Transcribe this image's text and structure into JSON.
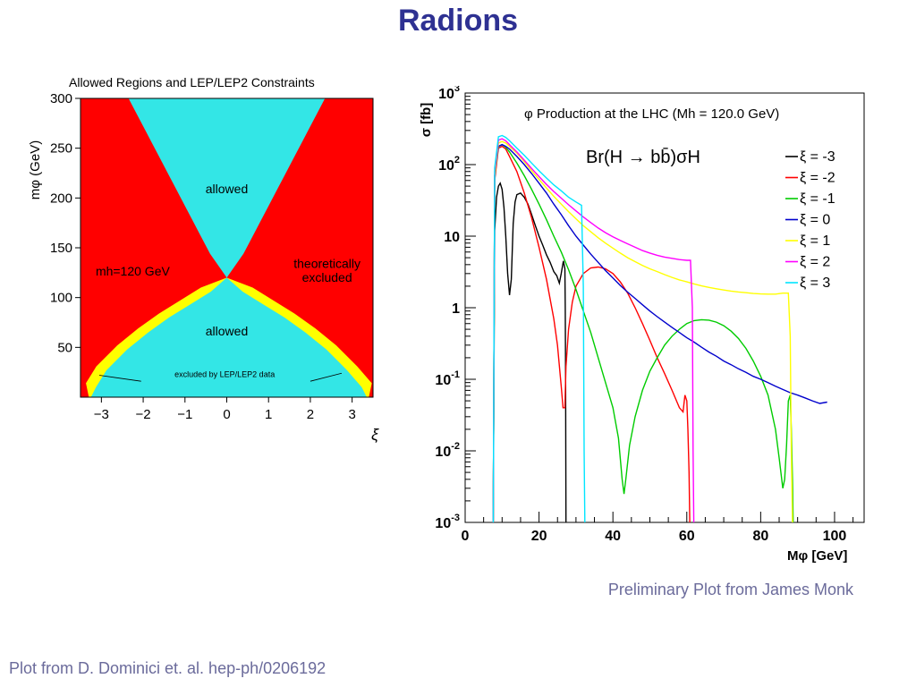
{
  "page": {
    "title": "Radions",
    "caption_right": "Preliminary Plot from James Monk",
    "caption_left": "Plot from D. Dominici et. al. hep-ph/0206192"
  },
  "colors": {
    "title": "#2e3192",
    "caption": "#6b6b9b",
    "excluded": "#ff0000",
    "allowed": "#33e6e6",
    "lep": "#ffff00"
  },
  "chart_data": [
    {
      "type": "heatmap",
      "title": "Allowed Regions and LEP/LEP2 Constraints",
      "xlabel": "ξ",
      "ylabel": "mφ (GeV)",
      "xlim": [
        -3.5,
        3.5
      ],
      "ylim": [
        0,
        300
      ],
      "x_ticks": [
        -3,
        -2,
        -1,
        0,
        1,
        2,
        3
      ],
      "y_ticks": [
        50,
        100,
        150,
        200,
        250,
        300
      ],
      "x_tick_labels": [
        "−3",
        "−2",
        "−1",
        "0",
        "1",
        "2",
        "3"
      ],
      "y_tick_labels": [
        "50",
        "100",
        "150",
        "200",
        "250",
        "300"
      ],
      "grid": false,
      "regions": [
        {
          "name": "allowed",
          "color": "#33e6e6"
        },
        {
          "name": "theoretically excluded",
          "color": "#ff0000"
        },
        {
          "name": "excluded by LEP/LEP2 data",
          "color": "#ffff00"
        }
      ],
      "boundary_upper": {
        "x": [
          -2.35,
          -2.2,
          -2.0,
          -1.8,
          -1.6,
          -1.4,
          -1.2,
          -1.0,
          -0.8,
          -0.6,
          -0.4,
          -0.2,
          0.0,
          0.2,
          0.4,
          0.6,
          0.8,
          1.0,
          1.2,
          1.4,
          1.6,
          1.8,
          2.0,
          2.2,
          2.35
        ],
        "y": [
          300,
          288,
          272,
          256,
          240,
          224,
          208,
          192,
          176,
          160,
          144,
          132,
          120,
          132,
          144,
          160,
          176,
          192,
          208,
          224,
          240,
          256,
          272,
          288,
          300
        ]
      },
      "boundary_lower": {
        "x": [
          -3.25,
          -3.0,
          -2.5,
          -2.0,
          -1.5,
          -1.0,
          -0.5,
          0.0,
          0.5,
          1.0,
          1.5,
          2.0,
          2.5,
          3.0,
          3.35
        ],
        "y": [
          10,
          27,
          48,
          65,
          80,
          93,
          106,
          120,
          106,
          93,
          80,
          65,
          48,
          27,
          10
        ]
      },
      "annotations": [
        {
          "text": "allowed",
          "x": 0.0,
          "y": 205
        },
        {
          "text": "allowed",
          "x": 0.0,
          "y": 62
        },
        {
          "text": "mh=120 GeV",
          "x": -2.25,
          "y": 122
        },
        {
          "text": "theoretically",
          "x": 2.4,
          "y": 130
        },
        {
          "text": "excluded",
          "x": 2.4,
          "y": 116
        },
        {
          "text": "excluded by LEP/LEP2 data",
          "x": -0.05,
          "y": 20
        }
      ]
    },
    {
      "type": "line",
      "title": "φ Production at the LHC (Mh = 120.0 GeV)",
      "subtitle": "Br(H → bb̄)σH",
      "xlabel": "Mφ [GeV]",
      "ylabel": "σ [fb]",
      "xlim": [
        0,
        108
      ],
      "ylim": [
        0.001,
        1000
      ],
      "yscale": "log",
      "grid": false,
      "legend": "right",
      "x_ticks": [
        0,
        20,
        40,
        60,
        80,
        100
      ],
      "x_tick_labels": [
        "0",
        "20",
        "40",
        "60",
        "80",
        "100"
      ],
      "y_ticks": [
        0.001,
        0.01,
        0.1,
        1,
        10,
        100,
        1000
      ],
      "y_tick_labels": [
        {
          "base": "10",
          "exp": "-3"
        },
        {
          "base": "10",
          "exp": "-2"
        },
        {
          "base": "10",
          "exp": "-1"
        },
        {
          "base": "1",
          "exp": ""
        },
        {
          "base": "10",
          "exp": ""
        },
        {
          "base": "10",
          "exp": "2"
        },
        {
          "base": "10",
          "exp": "3"
        }
      ],
      "series": [
        {
          "name": "ξ = -3",
          "color": "#000000",
          "x": [
            7.6,
            8.0,
            8.5,
            9.0,
            9.5,
            10.0,
            10.5,
            11.0,
            11.5,
            12.0,
            12.5,
            13.0,
            13.5,
            14.0,
            15.0,
            16.0,
            17.0,
            18.0,
            19.0,
            20.0,
            21.0,
            22.0,
            23.0,
            24.0,
            24.8,
            25.5,
            26.0,
            26.6,
            27.0,
            27.1,
            27.2,
            27.3
          ],
          "y": [
            0.001,
            12,
            35,
            50,
            55,
            45,
            25,
            10,
            3,
            1.5,
            2.5,
            15,
            30,
            38,
            40,
            35,
            28,
            20,
            14,
            10,
            7.5,
            5.5,
            4.3,
            3.2,
            2.8,
            2.2,
            3.0,
            4.5,
            3.5,
            1.0,
            0.1,
            0.001
          ]
        },
        {
          "name": "ξ = -2",
          "color": "#ff0000",
          "x": [
            7.6,
            8.0,
            9.0,
            10.0,
            11.0,
            12.0,
            14.0,
            16.0,
            18.0,
            20.0,
            22.0,
            24.0,
            25.0,
            26.0,
            26.5,
            27.0,
            27.3,
            28.0,
            29.0,
            30.0,
            32.0,
            34.0,
            36.0,
            38.0,
            40.0,
            42.0,
            44.0,
            46.0,
            48.0,
            50.0,
            52.0,
            54.0,
            56.0,
            58.0,
            59.0,
            59.5,
            60.0,
            60.3,
            60.6,
            60.8
          ],
          "y": [
            0.001,
            60,
            170,
            180,
            165,
            130,
            80,
            40,
            18,
            7,
            2.5,
            0.7,
            0.3,
            0.08,
            0.04,
            0.04,
            0.15,
            0.5,
            1.2,
            2,
            3,
            3.6,
            3.7,
            3.5,
            3.0,
            2.3,
            1.6,
            1.0,
            0.6,
            0.35,
            0.2,
            0.12,
            0.07,
            0.04,
            0.035,
            0.06,
            0.05,
            0.02,
            0.005,
            0.001
          ]
        },
        {
          "name": "ξ = -1",
          "color": "#00cc00",
          "x": [
            7.6,
            8.0,
            9.0,
            10.0,
            11.0,
            12.0,
            14.0,
            16.0,
            18.0,
            20.0,
            22.0,
            24.0,
            26.0,
            28.0,
            30.0,
            32.0,
            34.0,
            36.0,
            38.0,
            40.0,
            41.5,
            42.5,
            43.0,
            43.5,
            44.5,
            46.0,
            48.0,
            50.0,
            52.0,
            54.0,
            56.0,
            58.0,
            60.0,
            62.0,
            64.0,
            66.0,
            68.0,
            70.0,
            72.0,
            74.0,
            76.0,
            78.0,
            80.0,
            82.0,
            84.0,
            85.0,
            86.0,
            86.5,
            87.0,
            87.5,
            88.0,
            88.3,
            88.6,
            88.8
          ],
          "y": [
            0.001,
            70,
            180,
            190,
            175,
            150,
            105,
            70,
            45,
            28,
            17,
            10,
            6,
            3.4,
            1.8,
            0.9,
            0.45,
            0.2,
            0.09,
            0.04,
            0.015,
            0.004,
            0.0025,
            0.004,
            0.012,
            0.03,
            0.07,
            0.13,
            0.2,
            0.3,
            0.4,
            0.5,
            0.6,
            0.66,
            0.68,
            0.67,
            0.63,
            0.56,
            0.47,
            0.37,
            0.27,
            0.18,
            0.11,
            0.06,
            0.02,
            0.008,
            0.003,
            0.004,
            0.012,
            0.05,
            0.06,
            0.02,
            0.004,
            0.001
          ]
        },
        {
          "name": "ξ = 0",
          "color": "#0000cc",
          "x": [
            7.6,
            8.0,
            9.0,
            10.0,
            11.0,
            12.0,
            14.0,
            16.0,
            18.0,
            20.0,
            22.0,
            24.0,
            26.0,
            28.0,
            30.0,
            32.0,
            34.0,
            36.0,
            38.0,
            40.0,
            42.0,
            44.0,
            46.0,
            48.0,
            50.0,
            52.0,
            54.0,
            56.0,
            58.0,
            60.0,
            62.0,
            64.0,
            66.0,
            68.0,
            70.0,
            72.0,
            74.0,
            76.0,
            78.0,
            80.0,
            82.0,
            84.0,
            86.0,
            88.0,
            90.0,
            92.0,
            94.0,
            96.0,
            98.0
          ],
          "y": [
            0.001,
            70,
            180,
            190,
            180,
            165,
            130,
            100,
            75,
            55,
            40,
            28,
            20,
            14,
            10,
            7.5,
            5.6,
            4.3,
            3.3,
            2.6,
            2.05,
            1.65,
            1.35,
            1.1,
            0.9,
            0.75,
            0.63,
            0.53,
            0.45,
            0.38,
            0.33,
            0.28,
            0.24,
            0.21,
            0.18,
            0.16,
            0.14,
            0.125,
            0.11,
            0.1,
            0.09,
            0.08,
            0.072,
            0.065,
            0.06,
            0.055,
            0.05,
            0.046,
            0.048
          ]
        },
        {
          "name": "ξ = 1",
          "color": "#ffff00",
          "x": [
            7.6,
            8.0,
            9.0,
            10.0,
            11.0,
            12.0,
            14.0,
            16.0,
            18.0,
            20.0,
            22.0,
            24.0,
            26.0,
            28.0,
            30.0,
            32.0,
            34.0,
            36.0,
            38.0,
            40.0,
            42.0,
            44.0,
            46.0,
            48.0,
            50.0,
            52.0,
            54.0,
            56.0,
            58.0,
            60.0,
            62.0,
            64.0,
            66.0,
            68.0,
            70.0,
            72.0,
            74.0,
            76.0,
            78.0,
            80.0,
            82.0,
            84.0,
            86.0,
            87.5,
            88.0,
            88.3,
            88.6
          ],
          "y": [
            0.001,
            70,
            200,
            210,
            200,
            180,
            145,
            110,
            82,
            62,
            47,
            36,
            28,
            22,
            17.5,
            14,
            11.5,
            9.5,
            8,
            6.8,
            5.8,
            5,
            4.4,
            3.9,
            3.5,
            3.2,
            2.9,
            2.65,
            2.45,
            2.3,
            2.15,
            2.02,
            1.92,
            1.84,
            1.77,
            1.71,
            1.66,
            1.62,
            1.58,
            1.56,
            1.55,
            1.55,
            1.6,
            1.6,
            0.4,
            0.01,
            0.001
          ]
        },
        {
          "name": "ξ = 2",
          "color": "#ff00ff",
          "x": [
            7.6,
            8.0,
            9.0,
            10.0,
            11.0,
            12.0,
            14.0,
            16.0,
            18.0,
            20.0,
            22.0,
            24.0,
            26.0,
            28.0,
            30.0,
            32.0,
            34.0,
            36.0,
            38.0,
            40.0,
            42.0,
            44.0,
            46.0,
            48.0,
            50.0,
            52.0,
            54.0,
            56.0,
            58.0,
            60.0,
            61.0,
            61.5,
            61.7,
            61.9
          ],
          "y": [
            0.001,
            80,
            220,
            230,
            215,
            190,
            150,
            115,
            88,
            68,
            53,
            42,
            34,
            27.5,
            22.5,
            18.5,
            15.5,
            13,
            11.2,
            9.8,
            8.7,
            7.8,
            7,
            6.3,
            5.8,
            5.4,
            5.1,
            4.9,
            4.7,
            4.6,
            4.6,
            1.0,
            0.01,
            0.001
          ]
        },
        {
          "name": "ξ = 3",
          "color": "#00e5ff",
          "x": [
            7.6,
            8.0,
            9.0,
            10.0,
            11.0,
            12.0,
            14.0,
            16.0,
            18.0,
            20.0,
            22.0,
            24.0,
            26.0,
            28.0,
            30.0,
            31.5,
            32.0,
            32.2,
            32.4
          ],
          "y": [
            0.001,
            90,
            245,
            255,
            240,
            215,
            170,
            135,
            105,
            82,
            65,
            52,
            43,
            35,
            30,
            27,
            2.0,
            0.01,
            0.001
          ]
        }
      ]
    }
  ]
}
